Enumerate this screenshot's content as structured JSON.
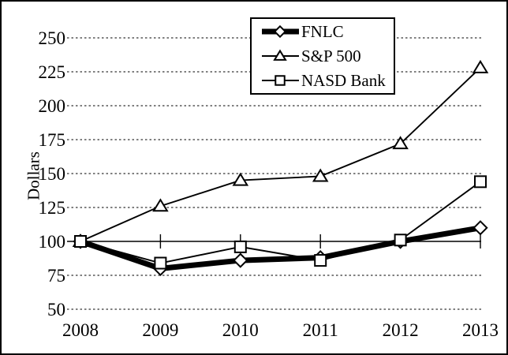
{
  "chart_data": {
    "type": "line",
    "title": "",
    "ylabel": "Dollars",
    "xlabel": "",
    "x_labels": [
      "2008",
      "2009",
      "2010",
      "2011",
      "2012",
      "2013"
    ],
    "y_ticks": [
      250,
      225,
      200,
      175,
      150,
      125,
      100,
      75,
      50
    ],
    "ylim": [
      50,
      262
    ],
    "axis_cross_value": 100,
    "grid": "horizontal dashed gridlines, solid category axis at 100 with cross ticks",
    "legend_position": "top-center-box",
    "series": [
      {
        "name": "FNLC",
        "marker": "diamond",
        "line_weight": "thick",
        "values": [
          100,
          80,
          86,
          88,
          100,
          110
        ]
      },
      {
        "name": "S&P 500",
        "marker": "triangle",
        "line_weight": "thin",
        "values": [
          100,
          126,
          145,
          148,
          172,
          228
        ]
      },
      {
        "name": "NASD Bank",
        "marker": "square",
        "line_weight": "thin",
        "values": [
          100,
          84,
          96,
          86,
          101,
          144
        ]
      }
    ],
    "colors": {
      "line": "#000000",
      "marker_fill": "#ffffff",
      "text": "#000000",
      "background": "#ffffff",
      "frame_border": "#000000"
    }
  }
}
